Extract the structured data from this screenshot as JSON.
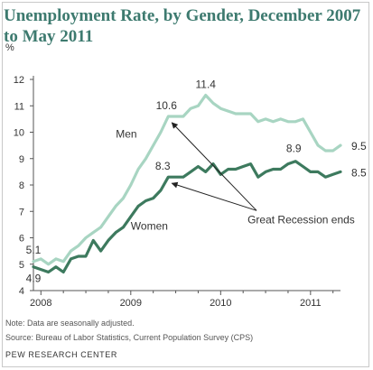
{
  "header": {
    "title": "Unemployment Rate, by Gender, December 2007 to May 2011",
    "unit": "%"
  },
  "footer": {
    "note": "Note: Data are seasonally adjusted.",
    "source": "Source: Bureau of Labor Statistics, Current Population Survey (CPS)",
    "brand": "PEW RESEARCH CENTER"
  },
  "colors": {
    "men": "#a8d5c2",
    "women": "#3d7a5e",
    "axis": "#555555",
    "text": "#333333"
  },
  "chart_data": {
    "type": "line",
    "title": "Unemployment Rate, by Gender, December 2007 to May 2011",
    "ylabel": "%",
    "ylim": [
      4,
      12
    ],
    "yticks": [
      4,
      5,
      6,
      7,
      8,
      9,
      10,
      11,
      12
    ],
    "x_range": [
      "2007-12",
      "2011-05"
    ],
    "xticks": [
      "2008",
      "2009",
      "2010",
      "2011"
    ],
    "grid": false,
    "x": [
      "2007-12",
      "2008-01",
      "2008-02",
      "2008-03",
      "2008-04",
      "2008-05",
      "2008-06",
      "2008-07",
      "2008-08",
      "2008-09",
      "2008-10",
      "2008-11",
      "2008-12",
      "2009-01",
      "2009-02",
      "2009-03",
      "2009-04",
      "2009-05",
      "2009-06",
      "2009-07",
      "2009-08",
      "2009-09",
      "2009-10",
      "2009-11",
      "2009-12",
      "2010-01",
      "2010-02",
      "2010-03",
      "2010-04",
      "2010-05",
      "2010-06",
      "2010-07",
      "2010-08",
      "2010-09",
      "2010-10",
      "2010-11",
      "2010-12",
      "2011-01",
      "2011-02",
      "2011-03",
      "2011-04",
      "2011-05"
    ],
    "series": [
      {
        "name": "Men",
        "values": [
          5.1,
          5.2,
          5.0,
          5.2,
          5.1,
          5.5,
          5.7,
          6.0,
          6.2,
          6.4,
          6.8,
          7.2,
          7.5,
          8.0,
          8.6,
          9.0,
          9.5,
          10.0,
          10.6,
          10.6,
          10.6,
          10.9,
          11.0,
          11.4,
          11.1,
          10.9,
          10.8,
          10.7,
          10.7,
          10.7,
          10.4,
          10.5,
          10.4,
          10.5,
          10.4,
          10.4,
          10.5,
          10.0,
          9.5,
          9.3,
          9.3,
          9.5
        ]
      },
      {
        "name": "Women",
        "values": [
          4.9,
          4.8,
          4.7,
          4.9,
          4.7,
          5.2,
          5.3,
          5.3,
          5.9,
          5.5,
          5.9,
          6.2,
          6.4,
          6.8,
          7.2,
          7.4,
          7.5,
          7.8,
          8.3,
          8.3,
          8.3,
          8.5,
          8.7,
          8.5,
          8.8,
          8.4,
          8.6,
          8.6,
          8.7,
          8.8,
          8.3,
          8.5,
          8.6,
          8.6,
          8.8,
          8.9,
          8.7,
          8.5,
          8.5,
          8.3,
          8.4,
          8.5
        ]
      }
    ],
    "data_labels": [
      {
        "series": "Men",
        "x": "2007-12",
        "text": "5.1"
      },
      {
        "series": "Women",
        "x": "2007-12",
        "text": "4.9"
      },
      {
        "series": "Men",
        "x": "2009-06",
        "text": "10.6"
      },
      {
        "series": "Women",
        "x": "2009-06",
        "text": "8.3"
      },
      {
        "series": "Men",
        "x": "2009-11",
        "text": "11.4"
      },
      {
        "series": "Women",
        "x": "2010-11",
        "text": "8.9"
      },
      {
        "series": "Men",
        "x": "2011-05",
        "text": "9.5"
      },
      {
        "series": "Women",
        "x": "2011-05",
        "text": "8.5"
      }
    ],
    "series_labels": [
      {
        "series": "Men",
        "text": "Men",
        "x": "2008-11",
        "y": 9.8
      },
      {
        "series": "Women",
        "text": "Women",
        "x": "2009-01",
        "y": 6.3
      }
    ],
    "annotation": {
      "text": "Great Recession ends",
      "x": "2009-06",
      "label_x": "2010-07",
      "label_y": 7.1,
      "arrow_targets": [
        10.5,
        8.2
      ]
    }
  }
}
